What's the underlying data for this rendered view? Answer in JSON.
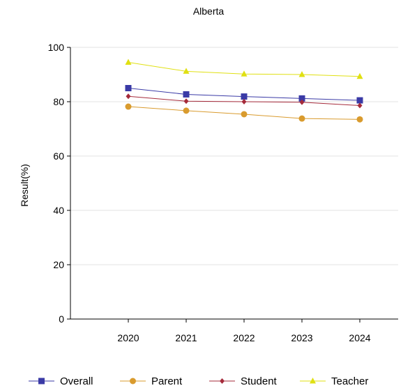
{
  "chart_data": {
    "type": "line",
    "title": "Alberta",
    "xlabel": "",
    "ylabel": "Result(%)",
    "categories": [
      "2020",
      "2021",
      "2022",
      "2023",
      "2024"
    ],
    "ylim": [
      0,
      100
    ],
    "yticks": [
      0,
      20,
      40,
      60,
      80,
      100
    ],
    "grid": true,
    "legend_position": "bottom",
    "series": [
      {
        "name": "Overall",
        "values": [
          85.0,
          82.7,
          81.9,
          81.2,
          80.5
        ],
        "color": "#3a3aa6",
        "marker": "square"
      },
      {
        "name": "Parent",
        "values": [
          78.2,
          76.7,
          75.4,
          73.8,
          73.5
        ],
        "color": "#d99b2e",
        "marker": "circle"
      },
      {
        "name": "Student",
        "values": [
          82.0,
          80.2,
          80.0,
          79.8,
          78.6
        ],
        "color": "#a52a3a",
        "marker": "diamond"
      },
      {
        "name": "Teacher",
        "values": [
          94.5,
          91.2,
          90.2,
          90.0,
          89.3
        ],
        "color": "#e0e012",
        "marker": "triangle"
      }
    ]
  }
}
